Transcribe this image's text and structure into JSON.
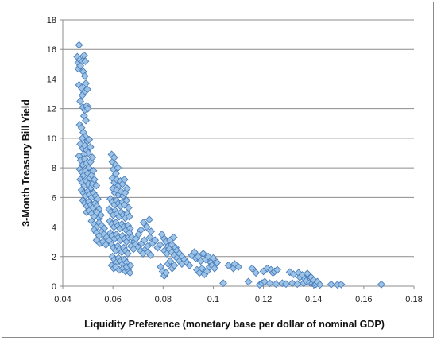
{
  "chart_data": {
    "type": "scatter",
    "title": "",
    "xlabel": "Liquidity Preference (monetary base per dollar of nominal GDP)",
    "ylabel": "3-Month Treasury Bill Yield",
    "xlim": [
      0.04,
      0.18
    ],
    "ylim": [
      0,
      18
    ],
    "xticks": [
      0.04,
      0.06,
      0.08,
      0.1,
      0.12,
      0.14,
      0.16,
      0.18
    ],
    "xtick_labels": [
      "0.04",
      "0.06",
      "0.08",
      "0.1",
      "0.12",
      "0.14",
      "0.16",
      "0.18"
    ],
    "yticks": [
      0,
      2,
      4,
      6,
      8,
      10,
      12,
      14,
      16,
      18
    ],
    "ytick_labels": [
      "0",
      "2",
      "4",
      "6",
      "8",
      "10",
      "12",
      "14",
      "16",
      "18"
    ],
    "grid": "horizontal",
    "legend": "none",
    "marker": "diamond",
    "marker_fill": "#9dc3e6",
    "marker_edge": "#4a7ebb",
    "points": [
      [
        0.0465,
        16.3
      ],
      [
        0.0458,
        15.5
      ],
      [
        0.0462,
        15.1
      ],
      [
        0.0468,
        15.3
      ],
      [
        0.0478,
        15.2
      ],
      [
        0.0485,
        15.6
      ],
      [
        0.049,
        15.2
      ],
      [
        0.0462,
        14.7
      ],
      [
        0.047,
        14.9
      ],
      [
        0.0482,
        14.5
      ],
      [
        0.0488,
        14.2
      ],
      [
        0.0465,
        13.6
      ],
      [
        0.0475,
        13.4
      ],
      [
        0.0485,
        13.1
      ],
      [
        0.0492,
        13.7
      ],
      [
        0.0498,
        13.3
      ],
      [
        0.0478,
        12.9
      ],
      [
        0.047,
        12.5
      ],
      [
        0.048,
        12.1
      ],
      [
        0.0488,
        11.9
      ],
      [
        0.0496,
        12.2
      ],
      [
        0.05,
        12.0
      ],
      [
        0.0485,
        11.5
      ],
      [
        0.0492,
        11.2
      ],
      [
        0.0468,
        10.9
      ],
      [
        0.0475,
        10.7
      ],
      [
        0.0482,
        10.4
      ],
      [
        0.049,
        10.1
      ],
      [
        0.0498,
        9.8
      ],
      [
        0.0505,
        9.9
      ],
      [
        0.0478,
        10.0
      ],
      [
        0.047,
        9.6
      ],
      [
        0.048,
        9.3
      ],
      [
        0.0488,
        9.5
      ],
      [
        0.0495,
        9.2
      ],
      [
        0.0502,
        9.0
      ],
      [
        0.051,
        9.4
      ],
      [
        0.0485,
        8.9
      ],
      [
        0.0465,
        8.8
      ],
      [
        0.0472,
        8.5
      ],
      [
        0.048,
        8.2
      ],
      [
        0.0488,
        8.6
      ],
      [
        0.0495,
        8.3
      ],
      [
        0.0503,
        8.0
      ],
      [
        0.051,
        8.4
      ],
      [
        0.0518,
        8.7
      ],
      [
        0.0468,
        7.9
      ],
      [
        0.0476,
        7.7
      ],
      [
        0.0484,
        7.5
      ],
      [
        0.0492,
        7.8
      ],
      [
        0.05,
        7.6
      ],
      [
        0.0508,
        7.3
      ],
      [
        0.0515,
        7.5
      ],
      [
        0.0522,
        7.8
      ],
      [
        0.047,
        7.2
      ],
      [
        0.0478,
        7.0
      ],
      [
        0.0486,
        6.8
      ],
      [
        0.0494,
        7.1
      ],
      [
        0.0502,
        6.9
      ],
      [
        0.051,
        6.6
      ],
      [
        0.0518,
        6.9
      ],
      [
        0.0526,
        7.2
      ],
      [
        0.0534,
        6.8
      ],
      [
        0.0475,
        6.5
      ],
      [
        0.0483,
        6.3
      ],
      [
        0.0491,
        6.1
      ],
      [
        0.0499,
        6.4
      ],
      [
        0.0507,
        6.2
      ],
      [
        0.0515,
        6.0
      ],
      [
        0.0523,
        6.3
      ],
      [
        0.0531,
        6.1
      ],
      [
        0.0539,
        5.9
      ],
      [
        0.048,
        5.8
      ],
      [
        0.0488,
        5.6
      ],
      [
        0.0496,
        5.4
      ],
      [
        0.0504,
        5.7
      ],
      [
        0.0512,
        5.5
      ],
      [
        0.052,
        5.3
      ],
      [
        0.0528,
        5.6
      ],
      [
        0.0536,
        5.4
      ],
      [
        0.0544,
        5.2
      ],
      [
        0.0495,
        5.0
      ],
      [
        0.0505,
        5.1
      ],
      [
        0.0515,
        4.9
      ],
      [
        0.0525,
        4.7
      ],
      [
        0.0535,
        5.0
      ],
      [
        0.0545,
        4.6
      ],
      [
        0.0552,
        4.8
      ],
      [
        0.0515,
        4.4
      ],
      [
        0.0525,
        4.2
      ],
      [
        0.0535,
        4.0
      ],
      [
        0.0545,
        4.3
      ],
      [
        0.0555,
        4.1
      ],
      [
        0.0565,
        3.9
      ],
      [
        0.0525,
        3.8
      ],
      [
        0.0535,
        3.6
      ],
      [
        0.0545,
        3.4
      ],
      [
        0.0555,
        3.7
      ],
      [
        0.0565,
        3.5
      ],
      [
        0.0575,
        3.3
      ],
      [
        0.0535,
        3.1
      ],
      [
        0.0548,
        2.9
      ],
      [
        0.056,
        3.0
      ],
      [
        0.0572,
        2.8
      ],
      [
        0.0585,
        3.1
      ],
      [
        0.0595,
        8.9
      ],
      [
        0.0598,
        8.4
      ],
      [
        0.0605,
        8.7
      ],
      [
        0.061,
        8.2
      ],
      [
        0.0602,
        7.9
      ],
      [
        0.0612,
        7.6
      ],
      [
        0.062,
        8.0
      ],
      [
        0.0598,
        7.3
      ],
      [
        0.0606,
        7.0
      ],
      [
        0.0615,
        7.2
      ],
      [
        0.0622,
        6.8
      ],
      [
        0.063,
        7.1
      ],
      [
        0.0638,
        6.9
      ],
      [
        0.0646,
        7.2
      ],
      [
        0.06,
        6.6
      ],
      [
        0.0608,
        6.3
      ],
      [
        0.0616,
        6.5
      ],
      [
        0.0624,
        6.2
      ],
      [
        0.0632,
        6.4
      ],
      [
        0.064,
        6.1
      ],
      [
        0.0648,
        6.3
      ],
      [
        0.0656,
        6.6
      ],
      [
        0.059,
        5.9
      ],
      [
        0.0598,
        5.7
      ],
      [
        0.0606,
        5.5
      ],
      [
        0.0614,
        5.8
      ],
      [
        0.0622,
        5.6
      ],
      [
        0.063,
        5.4
      ],
      [
        0.0638,
        5.7
      ],
      [
        0.0646,
        5.5
      ],
      [
        0.0654,
        5.8
      ],
      [
        0.0662,
        5.3
      ],
      [
        0.0585,
        5.2
      ],
      [
        0.0593,
        5.0
      ],
      [
        0.0601,
        4.8
      ],
      [
        0.0609,
        5.1
      ],
      [
        0.0617,
        4.9
      ],
      [
        0.0625,
        4.7
      ],
      [
        0.0633,
        5.0
      ],
      [
        0.0641,
        4.8
      ],
      [
        0.0649,
        4.6
      ],
      [
        0.0657,
        4.9
      ],
      [
        0.0665,
        4.7
      ],
      [
        0.0588,
        4.4
      ],
      [
        0.0596,
        4.2
      ],
      [
        0.0604,
        4.0
      ],
      [
        0.0612,
        4.3
      ],
      [
        0.062,
        4.1
      ],
      [
        0.0628,
        3.9
      ],
      [
        0.0636,
        4.2
      ],
      [
        0.0644,
        4.0
      ],
      [
        0.0652,
        3.8
      ],
      [
        0.066,
        4.1
      ],
      [
        0.0668,
        3.9
      ],
      [
        0.059,
        3.6
      ],
      [
        0.0598,
        3.4
      ],
      [
        0.0606,
        3.2
      ],
      [
        0.0614,
        3.5
      ],
      [
        0.0622,
        3.3
      ],
      [
        0.063,
        3.1
      ],
      [
        0.0638,
        3.4
      ],
      [
        0.0646,
        3.2
      ],
      [
        0.0654,
        3.0
      ],
      [
        0.0662,
        3.3
      ],
      [
        0.0595,
        2.8
      ],
      [
        0.0603,
        2.6
      ],
      [
        0.0611,
        2.4
      ],
      [
        0.0619,
        2.7
      ],
      [
        0.0627,
        2.5
      ],
      [
        0.0635,
        2.3
      ],
      [
        0.0643,
        2.6
      ],
      [
        0.0651,
        2.4
      ],
      [
        0.0659,
        2.2
      ],
      [
        0.0598,
        2.0
      ],
      [
        0.0606,
        1.8
      ],
      [
        0.0614,
        1.6
      ],
      [
        0.0622,
        1.9
      ],
      [
        0.063,
        1.7
      ],
      [
        0.0638,
        1.5
      ],
      [
        0.0646,
        1.8
      ],
      [
        0.0654,
        1.6
      ],
      [
        0.0595,
        1.4
      ],
      [
        0.0603,
        1.2
      ],
      [
        0.0611,
        1.3
      ],
      [
        0.0625,
        1.1
      ],
      [
        0.064,
        1.2
      ],
      [
        0.065,
        1.0
      ],
      [
        0.066,
        1.1
      ],
      [
        0.0668,
        0.9
      ],
      [
        0.0655,
        1.3
      ],
      [
        0.067,
        1.4
      ],
      [
        0.0665,
        3.6
      ],
      [
        0.0675,
        3.3
      ],
      [
        0.0685,
        3.0
      ],
      [
        0.069,
        2.8
      ],
      [
        0.07,
        2.6
      ],
      [
        0.071,
        2.4
      ],
      [
        0.072,
        2.2
      ],
      [
        0.073,
        2.5
      ],
      [
        0.074,
        2.3
      ],
      [
        0.075,
        2.1
      ],
      [
        0.0672,
        2.7
      ],
      [
        0.0682,
        2.5
      ],
      [
        0.0692,
        3.2
      ],
      [
        0.0702,
        3.5
      ],
      [
        0.0712,
        3.8
      ],
      [
        0.0722,
        4.3
      ],
      [
        0.0735,
        4.0
      ],
      [
        0.0745,
        4.5
      ],
      [
        0.0752,
        3.7
      ],
      [
        0.0715,
        2.9
      ],
      [
        0.0725,
        3.1
      ],
      [
        0.0738,
        2.7
      ],
      [
        0.0748,
        3.3
      ],
      [
        0.0758,
        2.9
      ],
      [
        0.0768,
        3.1
      ],
      [
        0.0778,
        2.6
      ],
      [
        0.0788,
        2.8
      ],
      [
        0.0795,
        3.5
      ],
      [
        0.0805,
        3.2
      ],
      [
        0.0812,
        3.0
      ],
      [
        0.082,
        2.7
      ],
      [
        0.0828,
        3.1
      ],
      [
        0.0835,
        2.8
      ],
      [
        0.0842,
        3.3
      ],
      [
        0.085,
        2.6
      ],
      [
        0.0805,
        2.4
      ],
      [
        0.0815,
        2.2
      ],
      [
        0.0825,
        2.5
      ],
      [
        0.0835,
        2.3
      ],
      [
        0.0845,
        2.1
      ],
      [
        0.0855,
        2.4
      ],
      [
        0.0865,
        2.2
      ],
      [
        0.0875,
        2.0
      ],
      [
        0.079,
        1.3
      ],
      [
        0.0798,
        1.0
      ],
      [
        0.0805,
        0.7
      ],
      [
        0.0812,
        0.9
      ],
      [
        0.082,
        1.5
      ],
      [
        0.0828,
        1.7
      ],
      [
        0.0836,
        1.2
      ],
      [
        0.0845,
        1.4
      ],
      [
        0.0855,
        1.9
      ],
      [
        0.0865,
        1.7
      ],
      [
        0.0875,
        1.5
      ],
      [
        0.0885,
        1.8
      ],
      [
        0.0895,
        1.6
      ],
      [
        0.0905,
        1.4
      ],
      [
        0.0915,
        2.1
      ],
      [
        0.0925,
        2.3
      ],
      [
        0.093,
        1.9
      ],
      [
        0.094,
        2.0
      ],
      [
        0.095,
        1.7
      ],
      [
        0.096,
        2.2
      ],
      [
        0.097,
        1.8
      ],
      [
        0.098,
        2.0
      ],
      [
        0.099,
        1.6
      ],
      [
        0.1,
        1.9
      ],
      [
        0.101,
        1.5
      ],
      [
        0.0935,
        1.1
      ],
      [
        0.0945,
        0.9
      ],
      [
        0.0955,
        1.2
      ],
      [
        0.0965,
        0.8
      ],
      [
        0.0975,
        1.0
      ],
      [
        0.0985,
        1.3
      ],
      [
        0.0995,
        1.4
      ],
      [
        0.1005,
        1.2
      ],
      [
        0.1015,
        1.6
      ],
      [
        0.104,
        0.2
      ],
      [
        0.106,
        1.4
      ],
      [
        0.108,
        1.2
      ],
      [
        0.11,
        1.3
      ],
      [
        0.1085,
        1.5
      ],
      [
        0.114,
        0.3
      ],
      [
        0.1155,
        1.2
      ],
      [
        0.117,
        0.9
      ],
      [
        0.1185,
        0.1
      ],
      [
        0.1195,
        0.2
      ],
      [
        0.12,
        1.0
      ],
      [
        0.1205,
        0.3
      ],
      [
        0.1215,
        1.2
      ],
      [
        0.1225,
        0.2
      ],
      [
        0.123,
        1.1
      ],
      [
        0.1238,
        0.9
      ],
      [
        0.1245,
        1.0
      ],
      [
        0.125,
        0.15
      ],
      [
        0.1255,
        1.1
      ],
      [
        0.1275,
        0.2
      ],
      [
        0.129,
        0.15
      ],
      [
        0.1305,
        0.95
      ],
      [
        0.1315,
        0.2
      ],
      [
        0.132,
        0.8
      ],
      [
        0.1335,
        0.15
      ],
      [
        0.134,
        0.9
      ],
      [
        0.1345,
        0.6
      ],
      [
        0.1355,
        0.75
      ],
      [
        0.136,
        0.2
      ],
      [
        0.1365,
        0.5
      ],
      [
        0.137,
        0.35
      ],
      [
        0.1375,
        0.85
      ],
      [
        0.1385,
        0.25
      ],
      [
        0.139,
        0.6
      ],
      [
        0.1395,
        0.2
      ],
      [
        0.14,
        0.4
      ],
      [
        0.1405,
        0.1
      ],
      [
        0.141,
        0.15
      ],
      [
        0.1415,
        0.3
      ],
      [
        0.1425,
        0.1
      ],
      [
        0.147,
        0.12
      ],
      [
        0.1495,
        0.1
      ],
      [
        0.151,
        0.12
      ],
      [
        0.167,
        0.12
      ]
    ]
  }
}
